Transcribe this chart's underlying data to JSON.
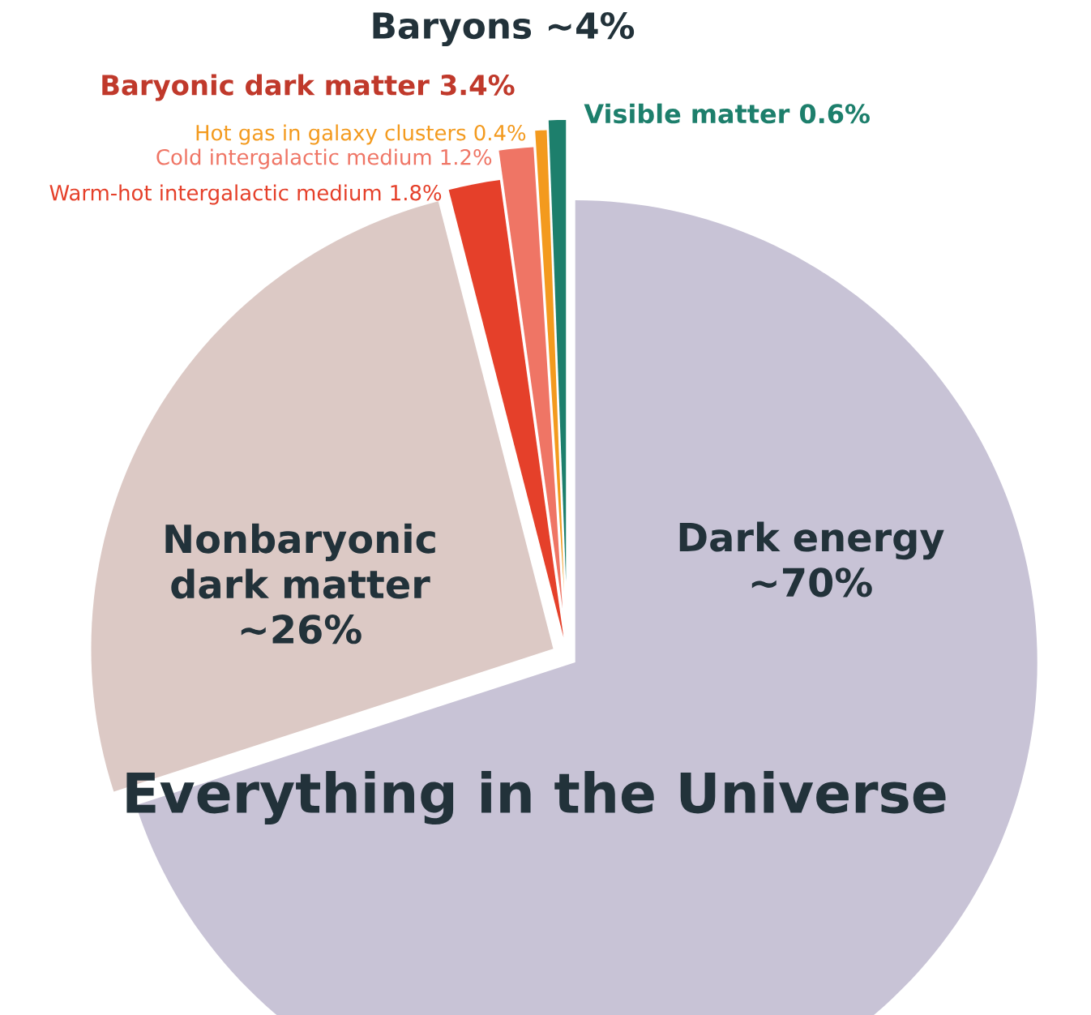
{
  "chart_data": {
    "type": "pie",
    "title": "Everything in the Universe",
    "categories": [
      "Dark energy",
      "Nonbaryonic dark matter",
      "Warm-hot intergalactic medium",
      "Cold intergalactic medium",
      "Hot gas in galaxy clusters",
      "Visible matter"
    ],
    "values": [
      70,
      26,
      1.8,
      1.2,
      0.4,
      0.6
    ],
    "value_labels": [
      "~70%",
      "~26%",
      "1.8%",
      "1.2%",
      "0.4%",
      "0.6%"
    ],
    "colors": [
      "#c8c3d6",
      "#dcc9c5",
      "#e5402a",
      "#ef7565",
      "#f39a1e",
      "#1d7f6c"
    ],
    "annotations": [
      "Baryons ~4%",
      "Baryonic dark matter 3.4%"
    ]
  }
}
